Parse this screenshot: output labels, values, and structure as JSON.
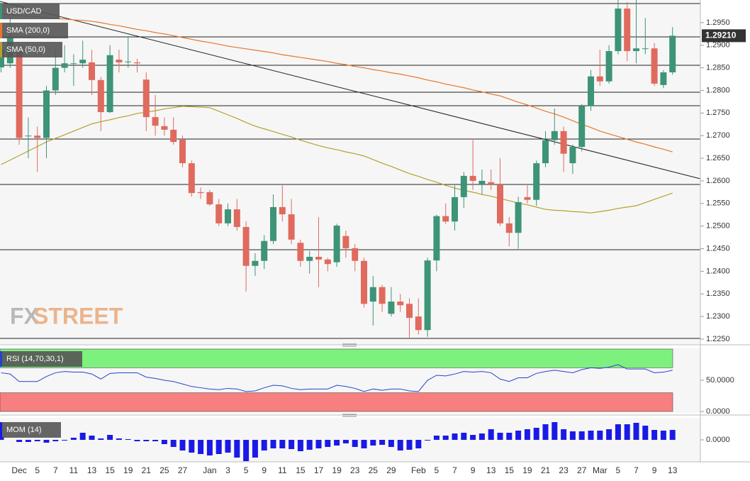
{
  "chart_data": [
    {
      "type": "candlestick",
      "title": "USD/CAD",
      "categories": [
        null,
        null,
        "Dec",
        null,
        "5",
        null,
        "7",
        null,
        "11",
        null,
        "13",
        null,
        "15",
        null,
        "19",
        null,
        "21",
        null,
        "25",
        null,
        "27",
        null,
        null,
        "Jan",
        null,
        "3",
        null,
        "5",
        null,
        "9",
        null,
        "11",
        null,
        "15",
        null,
        "17",
        null,
        "19",
        null,
        "23",
        null,
        "25",
        null,
        "29",
        null,
        null,
        "Feb",
        null,
        "5",
        null,
        "7",
        null,
        "9",
        null,
        "13",
        null,
        "15",
        null,
        "19",
        null,
        "21",
        null,
        "23",
        null,
        "27",
        null,
        "Mar",
        null,
        "5",
        null,
        "7",
        null,
        "9",
        null,
        "13"
      ],
      "open": [
        1.2851,
        1.286,
        1.289,
        1.27,
        1.27,
        1.2695,
        1.28,
        1.285,
        1.286,
        1.286,
        1.2862,
        1.2823,
        1.2752,
        1.2868,
        1.2864,
        1.2862,
        1.2824,
        1.2741,
        1.2721,
        1.2713,
        1.2691,
        1.2639,
        1.2575,
        1.2575,
        1.2548,
        1.2506,
        1.2537,
        1.2498,
        1.2412,
        1.2423,
        1.2467,
        1.2542,
        1.2526,
        1.2463,
        1.2423,
        1.2432,
        1.2426,
        1.242,
        1.2478,
        1.2451,
        1.2423,
        1.2333,
        1.2365,
        1.2306,
        1.2333,
        1.2328,
        1.23,
        1.227,
        1.2424,
        1.2522,
        1.251,
        1.2564,
        1.2611,
        1.2592,
        1.2597,
        1.2592,
        1.2506,
        1.2485,
        1.2564,
        1.2558,
        1.2639,
        1.269,
        1.271,
        1.2639,
        1.2675,
        1.2765,
        1.2831,
        1.282,
        1.2887,
        1.2981,
        1.2887,
        1.2893,
        1.2893,
        1.2812,
        1.284
      ],
      "high": [
        1.29,
        1.296,
        1.29,
        1.274,
        1.272,
        1.281,
        1.289,
        1.29,
        1.288,
        1.291,
        1.289,
        1.283,
        1.29,
        1.289,
        1.292,
        1.287,
        1.284,
        1.279,
        1.274,
        1.274,
        1.27,
        1.2645,
        1.2585,
        1.258,
        1.256,
        1.255,
        1.256,
        1.251,
        1.244,
        1.248,
        1.257,
        1.259,
        1.256,
        1.247,
        1.2445,
        1.252,
        1.243,
        1.2505,
        1.249,
        1.246,
        1.243,
        1.239,
        1.237,
        1.2365,
        1.235,
        1.234,
        1.234,
        1.243,
        1.2525,
        1.255,
        1.259,
        1.262,
        1.269,
        1.2625,
        1.2625,
        1.265,
        1.252,
        1.2565,
        1.259,
        1.2645,
        1.271,
        1.276,
        1.272,
        1.268,
        1.277,
        1.2845,
        1.289,
        1.29,
        1.3,
        1.2995,
        1.3,
        1.296,
        1.2905,
        1.2845,
        1.294
      ],
      "low": [
        1.284,
        1.285,
        1.268,
        1.265,
        1.262,
        1.265,
        1.279,
        1.284,
        1.281,
        1.285,
        1.279,
        1.271,
        1.275,
        1.284,
        1.285,
        1.284,
        1.271,
        1.27,
        1.27,
        1.268,
        1.263,
        1.2565,
        1.256,
        1.2545,
        1.25,
        1.25,
        1.249,
        1.2355,
        1.239,
        1.2405,
        1.246,
        1.251,
        1.246,
        1.241,
        1.2395,
        1.2365,
        1.24,
        1.241,
        1.243,
        1.24,
        1.232,
        1.228,
        1.231,
        1.23,
        1.231,
        1.225,
        1.226,
        1.2255,
        1.24,
        1.2505,
        1.249,
        1.254,
        1.258,
        1.257,
        1.258,
        1.25,
        1.2455,
        1.245,
        1.255,
        1.2545,
        1.263,
        1.268,
        1.262,
        1.2615,
        1.2665,
        1.2755,
        1.281,
        1.2815,
        1.288,
        1.2865,
        1.286,
        1.288,
        1.281,
        1.2805,
        1.2835
      ],
      "close": [
        1.289,
        1.292,
        1.2695,
        1.27,
        1.2695,
        1.28,
        1.285,
        1.286,
        1.286,
        1.2868,
        1.2823,
        1.2752,
        1.2878,
        1.2862,
        1.2864,
        1.286,
        1.2741,
        1.2722,
        1.2713,
        1.2686,
        1.2639,
        1.2573,
        1.2573,
        1.2548,
        1.2506,
        1.2537,
        1.2498,
        1.2412,
        1.2423,
        1.2467,
        1.2542,
        1.2526,
        1.247,
        1.2423,
        1.2432,
        1.2426,
        1.2416,
        1.2501,
        1.2451,
        1.2423,
        1.2328,
        1.2365,
        1.2328,
        1.2333,
        1.2325,
        1.2297,
        1.227,
        1.2424,
        1.2522,
        1.251,
        1.2564,
        1.2611,
        1.26,
        1.26,
        1.2592,
        1.2506,
        1.2485,
        1.2553,
        1.2558,
        1.2639,
        1.269,
        1.271,
        1.266,
        1.2675,
        1.2765,
        1.2831,
        1.282,
        1.2887,
        1.2981,
        1.2887,
        1.2893,
        1.2893,
        1.2815,
        1.284,
        1.2921
      ],
      "up_color": "#3d9477",
      "down_color": "#e06a5d",
      "series": [
        {
          "name": "SMA (200,0)",
          "color": "#e8772e",
          "values": [
            1.2969,
            1.2967,
            1.2966,
            1.2964,
            1.2963,
            1.2961,
            1.2959,
            1.2958,
            1.2956,
            1.2955,
            1.2953,
            1.295,
            1.2946,
            1.2943,
            1.2939,
            1.2935,
            1.2932,
            1.2928,
            1.2925,
            1.2921,
            1.2917,
            1.2913,
            1.2909,
            1.2906,
            1.2902,
            1.2898,
            1.2895,
            1.2892,
            1.2889,
            1.2886,
            1.2883,
            1.2879,
            1.2876,
            1.2873,
            1.287,
            1.2867,
            1.2864,
            1.286,
            1.2857,
            1.2853,
            1.285,
            1.2846,
            1.2843,
            1.2839,
            1.2836,
            1.2832,
            1.2828,
            1.2823,
            1.2819,
            1.2814,
            1.281,
            1.2806,
            1.2801,
            1.2797,
            1.2792,
            1.2788,
            1.2781,
            1.2774,
            1.2768,
            1.2761,
            1.2754,
            1.2748,
            1.2741,
            1.2733,
            1.2725,
            1.2718,
            1.271,
            1.2704,
            1.2698,
            1.2692,
            1.2686,
            1.2681,
            1.2675,
            1.267,
            1.2664
          ]
        },
        {
          "name": "SMA (50,0)",
          "color": "#b5a22a",
          "values": [
            1.2636,
            1.2646,
            1.2656,
            1.2666,
            1.2676,
            1.2686,
            1.2694,
            1.2702,
            1.271,
            1.2718,
            1.2726,
            1.2731,
            1.2735,
            1.274,
            1.2744,
            1.2749,
            1.2752,
            1.2755,
            1.2759,
            1.2762,
            1.2765,
            1.2764,
            1.2763,
            1.2762,
            1.2754,
            1.2746,
            1.2738,
            1.2729,
            1.2721,
            1.2715,
            1.2709,
            1.2703,
            1.2697,
            1.269,
            1.2684,
            1.2678,
            1.2673,
            1.2669,
            1.2664,
            1.266,
            1.2655,
            1.2647,
            1.2639,
            1.2632,
            1.2624,
            1.2616,
            1.261,
            1.2603,
            1.2597,
            1.259,
            1.2584,
            1.2579,
            1.2575,
            1.257,
            1.2566,
            1.2561,
            1.2556,
            1.2551,
            1.2547,
            1.2542,
            1.2537,
            1.2535,
            1.2534,
            1.2532,
            1.2531,
            1.2529,
            1.2532,
            1.2535,
            1.2539,
            1.2542,
            1.2545,
            1.2552,
            1.2559,
            1.2566,
            1.2573
          ]
        }
      ],
      "last_price": {
        "value": 1.2921,
        "label": "1.29210"
      },
      "ylim": [
        1.2239,
        1.3
      ],
      "yticks": [
        {
          "value": 1.225,
          "label": "1.2250"
        },
        {
          "value": 1.23,
          "label": "1.2300"
        },
        {
          "value": 1.235,
          "label": "1.2350"
        },
        {
          "value": 1.24,
          "label": "1.2400"
        },
        {
          "value": 1.245,
          "label": "1.2450"
        },
        {
          "value": 1.25,
          "label": "1.2500"
        },
        {
          "value": 1.255,
          "label": "1.2550"
        },
        {
          "value": 1.26,
          "label": "1.2600"
        },
        {
          "value": 1.265,
          "label": "1.2650"
        },
        {
          "value": 1.27,
          "label": "1.2700"
        },
        {
          "value": 1.275,
          "label": "1.2750"
        },
        {
          "value": 1.28,
          "label": "1.2800"
        },
        {
          "value": 1.285,
          "label": "1.2850"
        },
        {
          "value": 1.29,
          "label": "1.2900"
        },
        {
          "value": 1.295,
          "label": "1.2950"
        }
      ],
      "watermark": [
        "FX",
        "STREET"
      ]
    },
    {
      "type": "line",
      "series": [
        {
          "name": "RSI (14,70,30,1)",
          "color": "#2244cc",
          "values": [
            62,
            60,
            48,
            48,
            48,
            56,
            62,
            64,
            63,
            63,
            60,
            52,
            61,
            62,
            62,
            62,
            55,
            53,
            50,
            48,
            44,
            40,
            38,
            36,
            35,
            37,
            36,
            32,
            33,
            38,
            42,
            41,
            37,
            35,
            36,
            36,
            36,
            42,
            40,
            37,
            32,
            36,
            34,
            36,
            36,
            33,
            32,
            50,
            58,
            57,
            60,
            64,
            63,
            64,
            62,
            52,
            48,
            54,
            54,
            61,
            64,
            66,
            64,
            62,
            67,
            70,
            69,
            71,
            75,
            68,
            68,
            68,
            62,
            63,
            66
          ]
        }
      ],
      "overbought": 70,
      "oversold": 30,
      "overbought_color": "#7ef07e",
      "oversold_color": "#f77f7f",
      "ylim": [
        0,
        100
      ],
      "yticks": [
        {
          "value": 50,
          "label": "50.0000"
        },
        {
          "value": 0,
          "label": "0.0000"
        }
      ]
    },
    {
      "type": "bar",
      "series": [
        {
          "name": "MOM (14)",
          "color": "#1a1ae6",
          "values": [
            0.002,
            0,
            -0.0012,
            -0.0012,
            -0.0008,
            -0.0016,
            -0.0008,
            -0.0004,
            0.0012,
            0.004,
            0.0024,
            0.0008,
            0.0028,
            0.0008,
            0.0004,
            -0.0008,
            -0.0008,
            -0.0008,
            -0.0024,
            -0.004,
            -0.006,
            -0.0072,
            -0.008,
            -0.0088,
            -0.008,
            -0.0072,
            -0.01,
            -0.012,
            -0.01,
            -0.006,
            -0.0048,
            -0.0048,
            -0.0052,
            -0.0064,
            -0.0056,
            -0.0048,
            -0.004,
            -0.0032,
            -0.002,
            -0.004,
            -0.0048,
            -0.0032,
            -0.0028,
            -0.004,
            -0.006,
            -0.0056,
            -0.0048,
            -0.0004,
            0.0024,
            0.0024,
            0.0036,
            0.004,
            0.0028,
            0.0036,
            0.006,
            0.004,
            0.004,
            0.0052,
            0.006,
            0.0068,
            0.0088,
            0.01,
            0.006,
            0.0048,
            0.0048,
            0.0052,
            0.0052,
            0.006,
            0.0088,
            0.0088,
            0.0096,
            0.008,
            0.0056,
            0.0052,
            0.0056
          ]
        }
      ],
      "ylim": [
        -0.012,
        0.012
      ],
      "yticks": [
        {
          "value": 0,
          "label": "0.0000"
        }
      ]
    }
  ]
}
